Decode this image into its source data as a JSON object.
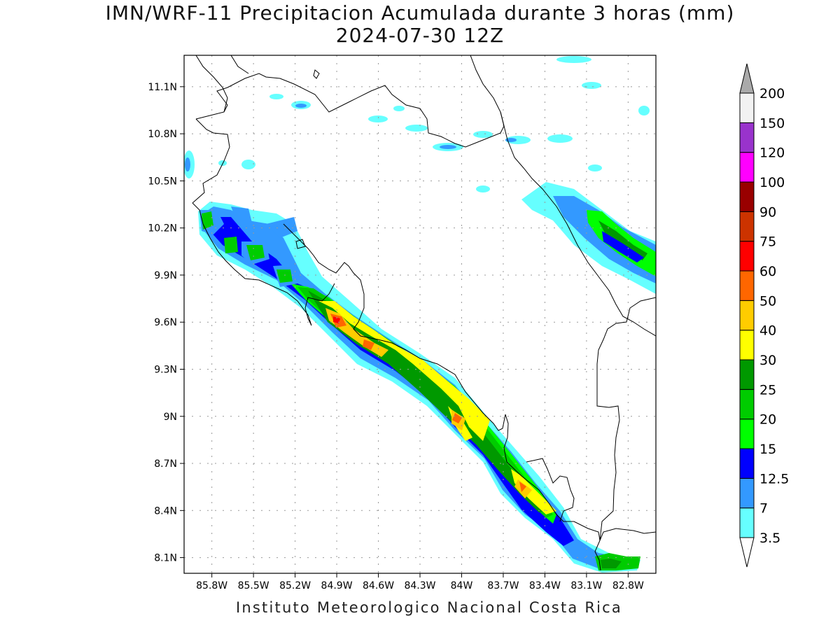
{
  "title": "IMN/WRF-11 Precipitacion Acumulada durante 3 horas (mm)",
  "subtitle": "2024-07-30 12Z",
  "footer": "Instituto Meteorologico Nacional Costa Rica",
  "map": {
    "lon_range": [
      -86.0,
      -82.6
    ],
    "lat_range": [
      8.0,
      11.3
    ],
    "lat_ticks": [
      {
        "value": 11.1,
        "label": "11.1N"
      },
      {
        "value": 10.8,
        "label": "10.8N"
      },
      {
        "value": 10.5,
        "label": "10.5N"
      },
      {
        "value": 10.2,
        "label": "10.2N"
      },
      {
        "value": 9.9,
        "label": "9.9N"
      },
      {
        "value": 9.6,
        "label": "9.6N"
      },
      {
        "value": 9.3,
        "label": "9.3N"
      },
      {
        "value": 9.0,
        "label": "9N"
      },
      {
        "value": 8.7,
        "label": "8.7N"
      },
      {
        "value": 8.4,
        "label": "8.4N"
      },
      {
        "value": 8.1,
        "label": "8.1N"
      }
    ],
    "lon_ticks": [
      {
        "value": -85.8,
        "label": "85.8W"
      },
      {
        "value": -85.5,
        "label": "85.5W"
      },
      {
        "value": -85.2,
        "label": "85.2W"
      },
      {
        "value": -84.9,
        "label": "84.9W"
      },
      {
        "value": -84.6,
        "label": "84.6W"
      },
      {
        "value": -84.3,
        "label": "84.3W"
      },
      {
        "value": -84.0,
        "label": "84W"
      },
      {
        "value": -83.7,
        "label": "83.7W"
      },
      {
        "value": -83.4,
        "label": "83.4W"
      },
      {
        "value": -83.1,
        "label": "83.1W"
      },
      {
        "value": -82.8,
        "label": "82.8W"
      }
    ],
    "grid": true
  },
  "colorbar": {
    "levels": [
      "3.5",
      "7",
      "12.5",
      "15",
      "20",
      "25",
      "30",
      "40",
      "50",
      "60",
      "75",
      "90",
      "100",
      "120",
      "150",
      "200"
    ],
    "colors": [
      "#66ffff",
      "#3399ff",
      "#0000ff",
      "#00ff00",
      "#00cc00",
      "#009900",
      "#ffff00",
      "#ffcc00",
      "#ff6600",
      "#ff0000",
      "#cc3300",
      "#990000",
      "#ff00ff",
      "#9933cc",
      "#f2f2f2",
      "#aaaaaa"
    ]
  }
}
